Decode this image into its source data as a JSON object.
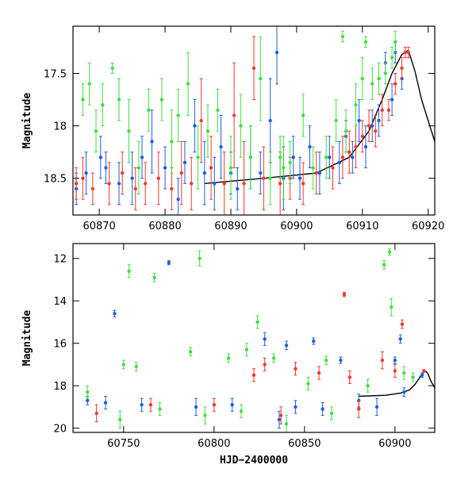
{
  "figure": {
    "colors": {
      "blue": "#1f5fe0",
      "red": "#f03a2e",
      "green": "#40e040",
      "model": "#000000"
    }
  },
  "chart_data": [
    {
      "type": "scatter",
      "title": "",
      "xlabel": "",
      "ylabel": "Magnitude",
      "xlim": [
        60866,
        60921
      ],
      "ylim": [
        18.85,
        17.05
      ],
      "y_inverted": true,
      "xticks": [
        60870,
        60880,
        60890,
        60900,
        60910,
        60920
      ],
      "yticks": [
        17.5,
        18,
        18.5
      ],
      "yticklabels": [
        "17.5",
        "18",
        "18.5"
      ],
      "series": [
        {
          "color": "blue",
          "points": [
            [
              60866.5,
              18.6,
              0.15
            ],
            [
              60868.0,
              18.45,
              0.2
            ],
            [
              60870.2,
              18.3,
              0.2
            ],
            [
              60871.0,
              18.4,
              0.15
            ],
            [
              60873.0,
              18.55,
              0.2
            ],
            [
              60875.0,
              18.5,
              0.25
            ],
            [
              60876.5,
              18.3,
              0.2
            ],
            [
              60878.0,
              18.15,
              0.3
            ],
            [
              60880.0,
              18.4,
              0.2
            ],
            [
              60882.0,
              18.7,
              0.2
            ],
            [
              60883.0,
              18.35,
              0.2
            ],
            [
              60884.5,
              18.0,
              0.25
            ],
            [
              60886.0,
              18.45,
              0.3
            ],
            [
              60887.5,
              18.55,
              0.25
            ],
            [
              60888.5,
              18.2,
              0.3
            ],
            [
              60890.0,
              18.45,
              0.2
            ],
            [
              60891.0,
              18.6,
              0.2
            ],
            [
              60893.0,
              18.3,
              0.3
            ],
            [
              60894.5,
              18.45,
              0.2
            ],
            [
              60896.0,
              17.95,
              0.4
            ],
            [
              60897.0,
              17.3,
              0.3
            ],
            [
              60898.0,
              18.5,
              0.3
            ],
            [
              60899.5,
              18.3,
              0.2
            ],
            [
              60900.5,
              18.5,
              0.2
            ],
            [
              60902.0,
              18.2,
              0.2
            ],
            [
              60903.5,
              18.45,
              0.2
            ],
            [
              60905.0,
              18.3,
              0.2
            ],
            [
              60906.5,
              18.35,
              0.2
            ],
            [
              60907.5,
              18.1,
              0.15
            ],
            [
              60908.5,
              18.3,
              0.15
            ],
            [
              60909.5,
              17.95,
              0.2
            ],
            [
              60910.5,
              18.2,
              0.2
            ],
            [
              60911.5,
              18.0,
              0.15
            ],
            [
              60912.5,
              17.95,
              0.15
            ],
            [
              60913.5,
              17.4,
              0.1
            ],
            [
              60914.5,
              17.75,
              0.15
            ],
            [
              60915.0,
              17.3,
              0.1
            ],
            [
              60916.0,
              17.55,
              0.1
            ]
          ]
        },
        {
          "color": "red",
          "points": [
            [
              60866.5,
              18.55,
              0.15
            ],
            [
              60867.5,
              18.5,
              0.2
            ],
            [
              60869.0,
              18.6,
              0.15
            ],
            [
              60871.5,
              18.55,
              0.2
            ],
            [
              60873.5,
              18.45,
              0.2
            ],
            [
              60875.5,
              18.6,
              0.2
            ],
            [
              60877.0,
              18.55,
              0.2
            ],
            [
              60879.0,
              18.5,
              0.25
            ],
            [
              60881.0,
              18.6,
              0.2
            ],
            [
              60882.5,
              18.45,
              0.3
            ],
            [
              60884.0,
              18.55,
              0.25
            ],
            [
              60885.5,
              17.95,
              0.4
            ],
            [
              60887.0,
              18.4,
              0.3
            ],
            [
              60889.0,
              18.55,
              0.3
            ],
            [
              60890.5,
              17.9,
              0.5
            ],
            [
              60892.0,
              18.55,
              0.4
            ],
            [
              60893.5,
              17.45,
              0.3
            ],
            [
              60895.0,
              18.5,
              0.3
            ],
            [
              60897.5,
              18.55,
              0.3
            ],
            [
              60899.0,
              18.5,
              0.2
            ],
            [
              60901.0,
              18.55,
              0.2
            ],
            [
              60903.0,
              18.45,
              0.2
            ],
            [
              60905.5,
              18.4,
              0.2
            ],
            [
              60907.0,
              18.3,
              0.2
            ],
            [
              60908.0,
              18.25,
              0.2
            ],
            [
              60909.0,
              18.2,
              0.2
            ],
            [
              60910.0,
              18.1,
              0.15
            ],
            [
              60911.0,
              18.0,
              0.15
            ],
            [
              60912.0,
              18.05,
              0.15
            ],
            [
              60913.0,
              17.85,
              0.15
            ],
            [
              60914.0,
              17.85,
              0.1
            ],
            [
              60915.0,
              17.6,
              0.1
            ],
            [
              60916.0,
              17.45,
              0.1
            ],
            [
              60916.5,
              17.3,
              0.05
            ],
            [
              60917.0,
              17.3,
              0.05
            ]
          ]
        },
        {
          "color": "green",
          "points": [
            [
              60867.5,
              17.75,
              0.15
            ],
            [
              60868.5,
              17.6,
              0.2
            ],
            [
              60869.5,
              18.05,
              0.2
            ],
            [
              60870.5,
              17.8,
              0.2
            ],
            [
              60872.0,
              17.45,
              0.05
            ],
            [
              60873.0,
              17.75,
              0.2
            ],
            [
              60874.5,
              18.05,
              0.3
            ],
            [
              60876.0,
              18.4,
              0.25
            ],
            [
              60877.5,
              17.85,
              0.2
            ],
            [
              60879.5,
              17.75,
              0.2
            ],
            [
              60881.0,
              18.15,
              0.3
            ],
            [
              60882.0,
              17.9,
              0.25
            ],
            [
              60883.5,
              17.6,
              0.3
            ],
            [
              60885.0,
              18.3,
              0.3
            ],
            [
              60886.5,
              18.05,
              0.25
            ],
            [
              60888.0,
              17.85,
              0.2
            ],
            [
              60890.0,
              18.4,
              0.3
            ],
            [
              60891.5,
              18.0,
              0.3
            ],
            [
              60893.0,
              18.3,
              0.3
            ],
            [
              60894.5,
              17.55,
              0.4
            ],
            [
              60896.0,
              18.5,
              0.25
            ],
            [
              60897.5,
              18.3,
              0.2
            ],
            [
              60899.0,
              18.35,
              0.2
            ],
            [
              60901.0,
              17.9,
              0.2
            ],
            [
              60902.5,
              18.4,
              0.2
            ],
            [
              60904.5,
              18.3,
              0.2
            ],
            [
              60906.0,
              17.95,
              0.2
            ],
            [
              60907.5,
              18.05,
              0.2
            ],
            [
              60909.0,
              17.8,
              0.2
            ],
            [
              60910.0,
              17.55,
              0.2
            ],
            [
              60911.5,
              17.6,
              0.15
            ],
            [
              60912.5,
              17.55,
              0.15
            ],
            [
              60913.5,
              17.5,
              0.1
            ],
            [
              60914.5,
              17.35,
              0.1
            ],
            [
              60915.0,
              17.2,
              0.1
            ],
            [
              60907.0,
              17.15,
              0.05
            ],
            [
              60910.5,
              17.2,
              0.05
            ],
            [
              60898.0,
              18.4,
              0.3
            ]
          ]
        }
      ],
      "model_curve": [
        [
          60886,
          18.55
        ],
        [
          60895,
          18.5
        ],
        [
          60903,
          18.45
        ],
        [
          60908,
          18.3
        ],
        [
          60911,
          18.05
        ],
        [
          60913,
          17.75
        ],
        [
          60914.5,
          17.5
        ],
        [
          60916,
          17.32
        ],
        [
          60917,
          17.28
        ],
        [
          60918,
          17.48
        ],
        [
          60919,
          17.75
        ],
        [
          60920,
          17.95
        ],
        [
          60921,
          18.15
        ]
      ]
    },
    {
      "type": "scatter",
      "title": "",
      "xlabel": "HJD−2400000",
      "ylabel": "Magnitude",
      "xlim": [
        60722,
        60922
      ],
      "ylim": [
        20.2,
        11.3
      ],
      "y_inverted": true,
      "xticks": [
        60750,
        60800,
        60850,
        60900
      ],
      "yticks": [
        12,
        14,
        16,
        18,
        20
      ],
      "yticklabels": [
        "12",
        "14",
        "16",
        "18",
        "20"
      ],
      "series": [
        {
          "color": "blue",
          "points": [
            [
              60745,
              14.6,
              0.15
            ],
            [
              60775,
              12.2,
              0.1
            ],
            [
              60828,
              15.8,
              0.3
            ],
            [
              60840,
              16.1,
              0.2
            ],
            [
              60855,
              15.9,
              0.15
            ],
            [
              60870,
              16.8,
              0.15
            ],
            [
              60900,
              16.8,
              0.15
            ],
            [
              60903,
              15.8,
              0.2
            ],
            [
              60730,
              18.7,
              0.2
            ],
            [
              60740,
              18.8,
              0.3
            ],
            [
              60760,
              18.9,
              0.3
            ],
            [
              60790,
              19.0,
              0.4
            ],
            [
              60810,
              18.9,
              0.3
            ],
            [
              60836,
              19.6,
              0.4
            ],
            [
              60845,
              19.0,
              0.3
            ],
            [
              60860,
              19.1,
              0.3
            ],
            [
              60880,
              18.7,
              0.3
            ],
            [
              60890,
              19.0,
              0.4
            ],
            [
              60905,
              18.3,
              0.2
            ],
            [
              60915,
              17.5,
              0.1
            ]
          ]
        },
        {
          "color": "red",
          "points": [
            [
              60872,
              13.7,
              0.1
            ],
            [
              60904,
              15.1,
              0.2
            ],
            [
              60822,
              17.5,
              0.3
            ],
            [
              60828,
              17.0,
              0.3
            ],
            [
              60845,
              17.2,
              0.3
            ],
            [
              60858,
              17.4,
              0.3
            ],
            [
              60875,
              17.6,
              0.3
            ],
            [
              60893,
              16.8,
              0.4
            ],
            [
              60900,
              17.3,
              0.3
            ],
            [
              60735,
              19.3,
              0.4
            ],
            [
              60765,
              18.9,
              0.3
            ],
            [
              60800,
              18.9,
              0.3
            ],
            [
              60837,
              19.4,
              0.4
            ],
            [
              60880,
              19.1,
              0.4
            ],
            [
              60916,
              17.3,
              0.05
            ]
          ]
        },
        {
          "color": "green",
          "points": [
            [
              60753,
              12.6,
              0.3
            ],
            [
              60792,
              12.0,
              0.35
            ],
            [
              60767,
              12.9,
              0.2
            ],
            [
              60894,
              12.3,
              0.2
            ],
            [
              60897,
              11.7,
              0.15
            ],
            [
              60898,
              14.3,
              0.4
            ],
            [
              60824,
              15.0,
              0.3
            ],
            [
              60818,
              16.3,
              0.3
            ],
            [
              60808,
              16.7,
              0.2
            ],
            [
              60750,
              17.0,
              0.2
            ],
            [
              60757,
              17.1,
              0.2
            ],
            [
              60787,
              16.4,
              0.2
            ],
            [
              60833,
              16.7,
              0.2
            ],
            [
              60862,
              16.8,
              0.2
            ],
            [
              60905,
              17.4,
              0.3
            ],
            [
              60730,
              18.3,
              0.3
            ],
            [
              60770,
              19.1,
              0.3
            ],
            [
              60795,
              19.4,
              0.4
            ],
            [
              60815,
              19.2,
              0.3
            ],
            [
              60840,
              19.8,
              0.4
            ],
            [
              60852,
              17.9,
              0.3
            ],
            [
              60865,
              19.3,
              0.3
            ],
            [
              60885,
              18.0,
              0.3
            ],
            [
              60910,
              17.6,
              0.2
            ],
            [
              60748,
              19.6,
              0.4
            ]
          ]
        }
      ],
      "model_curve": [
        [
          60880,
          18.5
        ],
        [
          60895,
          18.45
        ],
        [
          60903,
          18.35
        ],
        [
          60908,
          18.2
        ],
        [
          60911,
          17.95
        ],
        [
          60913,
          17.7
        ],
        [
          60915,
          17.45
        ],
        [
          60916.5,
          17.3
        ],
        [
          60918,
          17.4
        ],
        [
          60920,
          17.8
        ],
        [
          60922,
          18.1
        ]
      ]
    }
  ]
}
